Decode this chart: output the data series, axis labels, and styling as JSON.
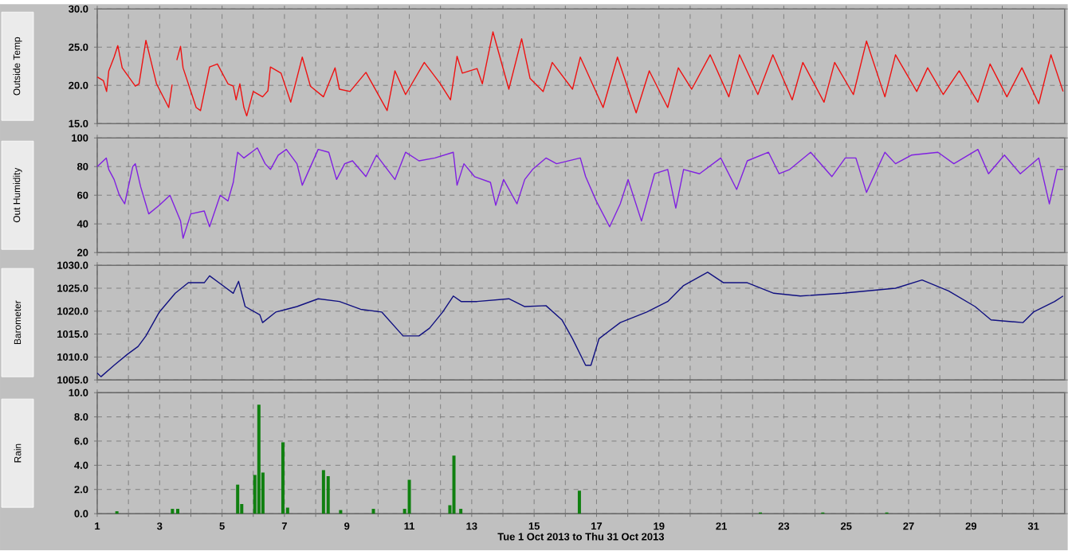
{
  "chart_data": [
    {
      "type": "line",
      "ylabel": "Outside Temp",
      "color": "#ee1111",
      "grid": true,
      "tick_labels": "y",
      "xlim": [
        1,
        32
      ],
      "ylim": [
        15,
        30
      ],
      "yticks": [
        {
          "value": 15,
          "label": "15.0"
        },
        {
          "value": 20,
          "label": "20.0"
        },
        {
          "value": 25,
          "label": "25.0"
        },
        {
          "value": 30,
          "label": "30.0"
        }
      ],
      "xticks": [
        1,
        {
          "value": 2,
          "label": null
        },
        3,
        {
          "value": 4,
          "label": null
        },
        5,
        {
          "value": 6,
          "label": null
        },
        7,
        {
          "value": 8,
          "label": null
        },
        9,
        {
          "value": 10,
          "label": null
        },
        11,
        {
          "value": 12,
          "label": null
        },
        13,
        {
          "value": 14,
          "label": null
        },
        15,
        {
          "value": 16,
          "label": null
        },
        17,
        {
          "value": 18,
          "label": null
        },
        19,
        {
          "value": 20,
          "label": null
        },
        21,
        {
          "value": 22,
          "label": null
        },
        23,
        {
          "value": 24,
          "label": null
        },
        25,
        {
          "value": 26,
          "label": null
        },
        27,
        {
          "value": 28,
          "label": null
        },
        29,
        {
          "value": 30,
          "label": null
        },
        31
      ],
      "x": [
        1.0,
        1.2,
        1.3,
        1.37,
        1.54,
        1.66,
        1.8,
        2.22,
        2.34,
        2.56,
        2.9,
        3.29,
        3.4,
        3.47,
        3.55,
        3.67,
        3.75,
        4.17,
        4.31,
        4.6,
        4.85,
        5.19,
        5.36,
        5.45,
        5.57,
        5.7,
        5.79,
        6.0,
        6.3,
        6.47,
        6.55,
        6.89,
        7.2,
        7.57,
        7.83,
        8.25,
        8.62,
        8.76,
        9.1,
        9.61,
        9.95,
        10.29,
        10.54,
        10.88,
        11.48,
        11.98,
        12.32,
        12.53,
        12.7,
        13.17,
        13.34,
        13.68,
        14.19,
        14.6,
        14.87,
        15.29,
        15.58,
        16.23,
        16.48,
        17.21,
        17.67,
        18.27,
        18.69,
        19.28,
        19.62,
        20.05,
        20.64,
        21.24,
        21.58,
        22.17,
        22.65,
        23.27,
        23.61,
        24.29,
        24.63,
        25.23,
        25.65,
        26.24,
        26.58,
        27.26,
        27.61,
        28.11,
        28.62,
        29.22,
        29.61,
        30.15,
        30.63,
        31.17,
        31.56,
        31.95
      ],
      "values": [
        21.1,
        20.6,
        19.2,
        21.9,
        23.7,
        25.2,
        22.3,
        19.9,
        20.2,
        25.9,
        20.2,
        17.1,
        20.1,
        null,
        23.3,
        25.1,
        22.3,
        17.1,
        16.7,
        22.4,
        22.8,
        20.2,
        19.9,
        18.1,
        20.2,
        17.1,
        16.0,
        19.2,
        18.5,
        19.3,
        22.4,
        21.6,
        17.8,
        23.7,
        19.9,
        18.5,
        22.3,
        19.5,
        19.2,
        21.7,
        19.2,
        16.7,
        21.9,
        18.8,
        23.0,
        20.3,
        18.1,
        23.8,
        21.6,
        22.2,
        20.2,
        27.0,
        19.5,
        26.1,
        20.9,
        19.2,
        23.0,
        19.5,
        23.7,
        17.1,
        23.7,
        16.4,
        21.9,
        17.1,
        22.3,
        19.5,
        24.0,
        18.5,
        24.0,
        18.8,
        24.0,
        18.1,
        23.0,
        17.8,
        23.0,
        18.8,
        25.8,
        18.5,
        24.0,
        19.2,
        22.3,
        18.8,
        21.9,
        17.8,
        22.8,
        18.5,
        22.3,
        17.6,
        24.0,
        19.2
      ]
    },
    {
      "type": "line",
      "ylabel": "Out Humidity",
      "color": "#8020e0",
      "grid": true,
      "tick_labels": "y",
      "xlim": [
        1,
        32
      ],
      "ylim": [
        20,
        100
      ],
      "yticks": [
        20,
        40,
        60,
        80,
        100
      ],
      "xticks": [
        1,
        {
          "value": 2,
          "label": null
        },
        3,
        {
          "value": 4,
          "label": null
        },
        5,
        {
          "value": 6,
          "label": null
        },
        7,
        {
          "value": 8,
          "label": null
        },
        9,
        {
          "value": 10,
          "label": null
        },
        11,
        {
          "value": 12,
          "label": null
        },
        13,
        {
          "value": 14,
          "label": null
        },
        15,
        {
          "value": 16,
          "label": null
        },
        17,
        {
          "value": 18,
          "label": null
        },
        19,
        {
          "value": 20,
          "label": null
        },
        21,
        {
          "value": 22,
          "label": null
        },
        23,
        {
          "value": 24,
          "label": null
        },
        25,
        {
          "value": 26,
          "label": null
        },
        27,
        {
          "value": 28,
          "label": null
        },
        29,
        {
          "value": 30,
          "label": null
        },
        31
      ],
      "x": [
        1.0,
        1.29,
        1.37,
        1.54,
        1.71,
        1.88,
        2.14,
        2.22,
        2.39,
        2.65,
        2.99,
        3.33,
        3.67,
        3.75,
        4.0,
        4.43,
        4.6,
        4.94,
        5.19,
        5.36,
        5.5,
        5.7,
        6.13,
        6.38,
        6.55,
        6.8,
        7.06,
        7.4,
        7.57,
        8.08,
        8.42,
        8.67,
        8.93,
        9.18,
        9.61,
        9.95,
        10.54,
        10.88,
        11.31,
        11.82,
        12.41,
        12.53,
        12.75,
        13.09,
        13.6,
        13.77,
        14.02,
        14.45,
        14.7,
        14.95,
        15.38,
        15.72,
        16.48,
        16.65,
        16.99,
        17.42,
        17.76,
        18.01,
        18.44,
        18.86,
        19.28,
        19.54,
        19.79,
        20.3,
        20.98,
        21.49,
        21.83,
        22.51,
        22.85,
        23.19,
        23.86,
        24.54,
        24.97,
        25.31,
        25.65,
        26.24,
        26.58,
        27.09,
        27.94,
        28.45,
        29.22,
        29.56,
        30.07,
        30.58,
        31.17,
        31.51,
        31.76,
        31.95
      ],
      "values": [
        80,
        86,
        78,
        71,
        60,
        54,
        80,
        82,
        66,
        47,
        53,
        60,
        42,
        30,
        47,
        49,
        38,
        60,
        56,
        69,
        90,
        86,
        93,
        82,
        78,
        88,
        92,
        82,
        67,
        92,
        90,
        71,
        82,
        84,
        73,
        88,
        71,
        90,
        84,
        86,
        90,
        67,
        82,
        73,
        69,
        53,
        71,
        54,
        71,
        78,
        86,
        82,
        86,
        73,
        56,
        38,
        54,
        71,
        42,
        75,
        78,
        51,
        78,
        75,
        86,
        64,
        84,
        90,
        75,
        78,
        90,
        73,
        86,
        86,
        62,
        90,
        82,
        88,
        90,
        82,
        92,
        75,
        88,
        75,
        86,
        54,
        78,
        78
      ]
    },
    {
      "type": "line",
      "ylabel": "Barometer",
      "color": "#101080",
      "grid": true,
      "tick_labels": "y",
      "xlim": [
        1,
        32
      ],
      "ylim": [
        1005,
        1030
      ],
      "yticks": [
        {
          "value": 1005,
          "label": "1005.0"
        },
        {
          "value": 1010,
          "label": "1010.0"
        },
        {
          "value": 1015,
          "label": "1015.0"
        },
        {
          "value": 1020,
          "label": "1020.0"
        },
        {
          "value": 1025,
          "label": "1025.0"
        },
        {
          "value": 1030,
          "label": "1030.0"
        }
      ],
      "xticks": [
        1,
        {
          "value": 2,
          "label": null
        },
        3,
        {
          "value": 4,
          "label": null
        },
        5,
        {
          "value": 6,
          "label": null
        },
        7,
        {
          "value": 8,
          "label": null
        },
        9,
        {
          "value": 10,
          "label": null
        },
        11,
        {
          "value": 12,
          "label": null
        },
        13,
        {
          "value": 14,
          "label": null
        },
        15,
        {
          "value": 16,
          "label": null
        },
        17,
        {
          "value": 18,
          "label": null
        },
        19,
        {
          "value": 20,
          "label": null
        },
        21,
        {
          "value": 22,
          "label": null
        },
        23,
        {
          "value": 24,
          "label": null
        },
        25,
        {
          "value": 26,
          "label": null
        },
        27,
        {
          "value": 28,
          "label": null
        },
        29,
        {
          "value": 30,
          "label": null
        },
        31
      ],
      "x": [
        1.0,
        1.12,
        1.54,
        1.97,
        2.31,
        2.56,
        2.99,
        3.5,
        3.92,
        4.43,
        4.6,
        5.02,
        5.36,
        5.53,
        5.74,
        6.21,
        6.3,
        6.72,
        7.06,
        7.4,
        8.08,
        8.76,
        9.44,
        10.12,
        10.8,
        11.31,
        11.65,
        12.07,
        12.41,
        12.66,
        13.17,
        14.19,
        14.7,
        15.38,
        15.89,
        16.23,
        16.65,
        16.82,
        17.08,
        17.76,
        18.61,
        19.28,
        19.79,
        20.56,
        21.07,
        21.83,
        22.68,
        23.53,
        24.88,
        26.58,
        27.43,
        28.28,
        29.13,
        29.64,
        30.66,
        31.0,
        31.68,
        31.95
      ],
      "values": [
        1006.5,
        1005.7,
        1008.2,
        1010.6,
        1012.3,
        1014.6,
        1019.8,
        1023.9,
        1026.2,
        1026.2,
        1027.7,
        1025.6,
        1023.9,
        1026.5,
        1021.0,
        1019.2,
        1017.5,
        1019.8,
        1020.4,
        1021.0,
        1022.7,
        1022.1,
        1020.4,
        1019.8,
        1014.6,
        1014.6,
        1016.3,
        1019.8,
        1023.3,
        1022.1,
        1022.1,
        1022.7,
        1021.0,
        1021.2,
        1018.1,
        1014.0,
        1008.2,
        1008.2,
        1014.0,
        1017.5,
        1019.8,
        1022.1,
        1025.6,
        1028.5,
        1026.2,
        1026.2,
        1023.9,
        1023.3,
        1023.9,
        1025.0,
        1026.8,
        1024.4,
        1021.0,
        1018.1,
        1017.5,
        1019.8,
        1022.1,
        1023.3
      ]
    },
    {
      "type": "bar",
      "ylabel": "Rain",
      "color": "#108010",
      "grid": true,
      "xlim": [
        1,
        32
      ],
      "ylim": [
        0,
        10
      ],
      "xlabel": "Tue 1 Oct 2013  to  Thu 31 Oct 2013",
      "yticks": [
        {
          "value": 0,
          "label": "0.0"
        },
        {
          "value": 2,
          "label": "2.0"
        },
        {
          "value": 4,
          "label": "4.0"
        },
        {
          "value": 6,
          "label": "6.0"
        },
        {
          "value": 8,
          "label": "8.0"
        },
        {
          "value": 10,
          "label": "10.0"
        }
      ],
      "xticks": [
        1,
        {
          "value": 2,
          "label": null
        },
        3,
        {
          "value": 4,
          "label": null
        },
        5,
        {
          "value": 6,
          "label": null
        },
        7,
        {
          "value": 8,
          "label": null
        },
        9,
        {
          "value": 10,
          "label": null
        },
        11,
        {
          "value": 12,
          "label": null
        },
        13,
        {
          "value": 14,
          "label": null
        },
        15,
        {
          "value": 16,
          "label": null
        },
        17,
        {
          "value": 18,
          "label": null
        },
        19,
        {
          "value": 20,
          "label": null
        },
        21,
        {
          "value": 22,
          "label": null
        },
        23,
        {
          "value": 24,
          "label": null
        },
        25,
        {
          "value": 26,
          "label": null
        },
        27,
        {
          "value": 28,
          "label": null
        },
        29,
        {
          "value": 30,
          "label": null
        },
        31
      ],
      "x": [
        1.63,
        3.41,
        3.58,
        5.5,
        5.63,
        6.05,
        6.18,
        6.31,
        6.95,
        7.1,
        8.25,
        8.4,
        8.8,
        9.85,
        10.85,
        11.0,
        12.3,
        12.43,
        12.65,
        16.45,
        22.25,
        24.25,
        26.3
      ],
      "values": [
        0.2,
        0.4,
        0.4,
        2.4,
        0.8,
        3.2,
        9.0,
        3.4,
        5.9,
        0.5,
        3.6,
        3.1,
        0.3,
        0.4,
        0.4,
        2.8,
        0.7,
        4.8,
        0.4,
        1.9,
        0.1,
        0.1,
        0.1
      ]
    }
  ]
}
